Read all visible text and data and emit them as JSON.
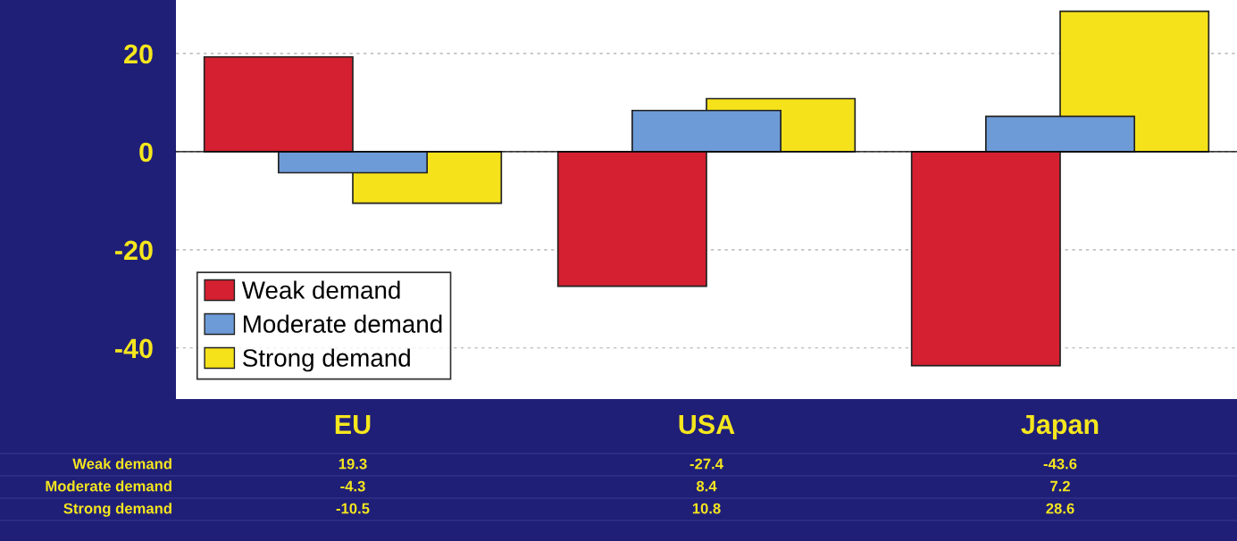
{
  "chart_data": {
    "type": "bar",
    "categories": [
      "EU",
      "USA",
      "Japan"
    ],
    "series": [
      {
        "name": "Weak demand",
        "color": "#d42030",
        "values": [
          19.3,
          -27.4,
          -43.6
        ]
      },
      {
        "name": "Moderate demand",
        "color": "#6d9bd8",
        "values": [
          -4.3,
          8.4,
          7.2
        ]
      },
      {
        "name": "Strong demand",
        "color": "#f5e21a",
        "values": [
          -10.5,
          10.8,
          28.6
        ]
      }
    ],
    "ylim": [
      -50.4,
      30.9
    ],
    "yticks": [
      -40,
      -20,
      0,
      20
    ],
    "grid": "y",
    "legend": "bottom left",
    "data_labels": true
  }
}
